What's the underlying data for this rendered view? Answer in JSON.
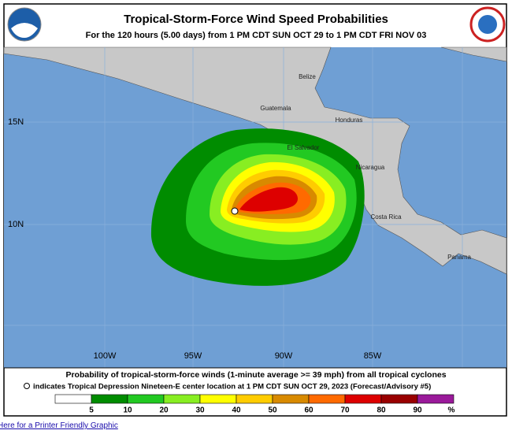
{
  "header": {
    "title": "Tropical-Storm-Force Wind Speed Probabilities",
    "subtitle": "For the 120 hours (5.00 days) from 1 PM CDT SUN OCT 29 to 1 PM CDT FRI NOV 03"
  },
  "map": {
    "latitude_labels": [
      "15N",
      "10N"
    ],
    "longitude_labels": [
      "100W",
      "95W",
      "90W",
      "85W"
    ],
    "place_labels": [
      "Belize",
      "Guatemala",
      "Honduras",
      "El Salvador",
      "Nicaragua",
      "Costa Rica",
      "Panama"
    ]
  },
  "legend": {
    "description": "Probability of tropical-storm-force winds (1-minute average >= 39 mph) from all tropical cyclones",
    "marker_note": "indicates Tropical Depression Nineteen-E center location at 1 PM CDT SUN OCT 29, 2023 (Forecast/Advisory #5)",
    "scale": {
      "ticks": [
        5,
        10,
        20,
        30,
        40,
        50,
        60,
        70,
        80,
        90
      ],
      "unit": "%",
      "colors": [
        "#ffffff",
        "#008c00",
        "#22c922",
        "#88ee22",
        "#ffff00",
        "#ffcc00",
        "#d88a00",
        "#ff6a00",
        "#dd0000",
        "#990000",
        "#9a1a9a"
      ]
    }
  },
  "footer": {
    "link": "Here for a Printer Friendly Graphic"
  }
}
